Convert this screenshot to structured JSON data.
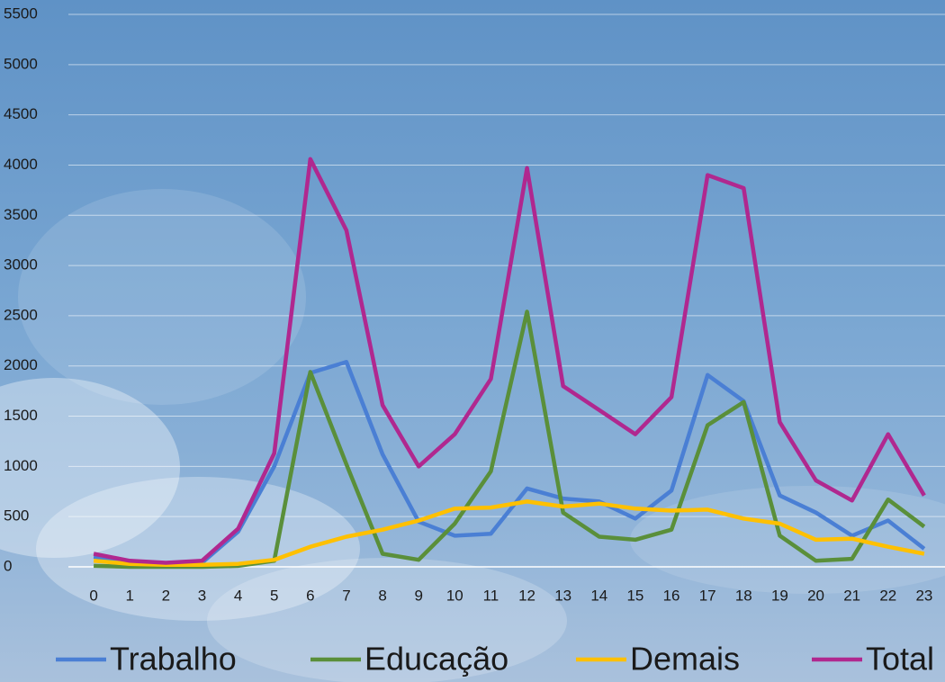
{
  "chart_data": {
    "type": "line",
    "categories": [
      "0",
      "1",
      "2",
      "3",
      "4",
      "5",
      "6",
      "7",
      "8",
      "9",
      "10",
      "11",
      "12",
      "13",
      "14",
      "15",
      "16",
      "17",
      "18",
      "19",
      "20",
      "21",
      "22",
      "23"
    ],
    "series": [
      {
        "name": "Trabalho",
        "color": "#4a7fd4",
        "values": [
          100,
          50,
          30,
          40,
          350,
          1000,
          1930,
          2040,
          1120,
          450,
          310,
          330,
          780,
          680,
          650,
          480,
          760,
          1910,
          1650,
          710,
          540,
          310,
          460,
          180
        ]
      },
      {
        "name": "Educação",
        "color": "#5a8f3a",
        "values": [
          10,
          0,
          0,
          0,
          10,
          60,
          1940,
          1020,
          130,
          70,
          430,
          950,
          2540,
          540,
          300,
          270,
          370,
          1410,
          1640,
          310,
          60,
          80,
          670,
          400
        ]
      },
      {
        "name": "Demais",
        "color": "#ffc000",
        "values": [
          60,
          30,
          20,
          20,
          30,
          70,
          200,
          300,
          370,
          460,
          580,
          590,
          650,
          600,
          630,
          580,
          560,
          570,
          480,
          430,
          270,
          280,
          200,
          130
        ]
      },
      {
        "name": "Total",
        "color": "#b0288f",
        "values": [
          130,
          60,
          40,
          60,
          380,
          1130,
          4060,
          3350,
          1610,
          1000,
          1320,
          1870,
          3970,
          1800,
          1560,
          1320,
          1690,
          3900,
          3770,
          1440,
          860,
          660,
          1320,
          710
        ]
      }
    ],
    "ylim": [
      0,
      5500
    ],
    "yticks": [
      0,
      500,
      1000,
      1500,
      2000,
      2500,
      3000,
      3500,
      4000,
      4500,
      5000,
      5500
    ],
    "grid": true
  }
}
